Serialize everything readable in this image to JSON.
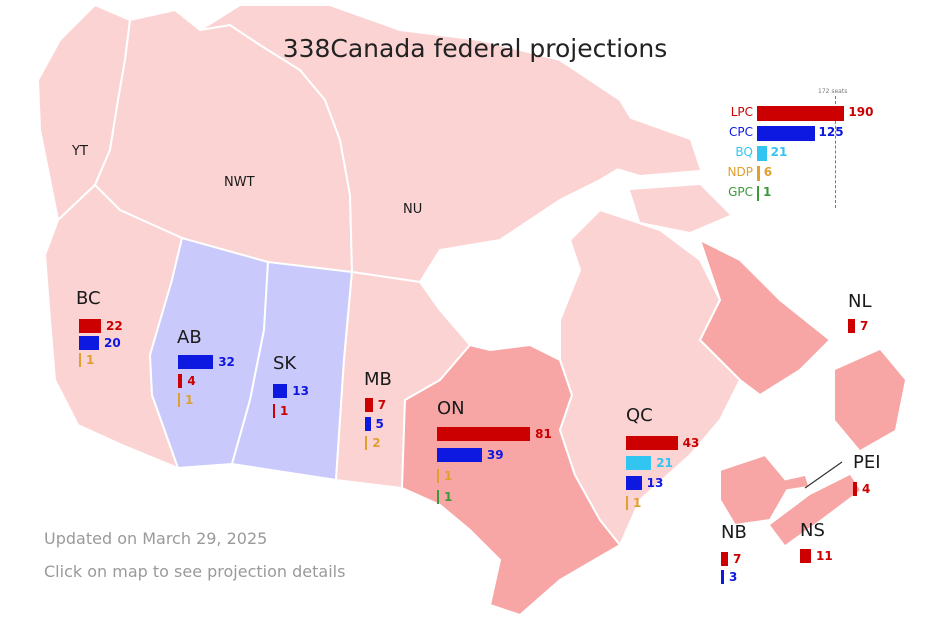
{
  "title": "338Canada federal projections",
  "colors": {
    "LPC": "#cc0000",
    "CPC": "#0d18e0",
    "BQ": "#33c5f2",
    "NDP": "#e0a030",
    "GPC": "#3a9a3a",
    "land_light": "#fbd3d3",
    "land_mid": "#f7a5a5",
    "land_cpc": "#c9c9fb",
    "water": "#ffffff"
  },
  "national": {
    "majority_label": "172 seats",
    "parties": [
      {
        "party": "LPC",
        "seats": 190
      },
      {
        "party": "CPC",
        "seats": 125
      },
      {
        "party": "BQ",
        "seats": 21
      },
      {
        "party": "NDP",
        "seats": 6
      },
      {
        "party": "GPC",
        "seats": 1
      }
    ]
  },
  "territories": [
    {
      "name": "YT"
    },
    {
      "name": "NWT"
    },
    {
      "name": "NU"
    }
  ],
  "provinces": [
    {
      "name": "BC",
      "seats": [
        {
          "party": "LPC",
          "value": 22
        },
        {
          "party": "CPC",
          "value": 20
        },
        {
          "party": "NDP",
          "value": 1
        }
      ]
    },
    {
      "name": "AB",
      "seats": [
        {
          "party": "CPC",
          "value": 32
        },
        {
          "party": "LPC",
          "value": 4
        },
        {
          "party": "NDP",
          "value": 1
        }
      ]
    },
    {
      "name": "SK",
      "seats": [
        {
          "party": "CPC",
          "value": 13
        },
        {
          "party": "LPC",
          "value": 1
        }
      ]
    },
    {
      "name": "MB",
      "seats": [
        {
          "party": "LPC",
          "value": 7
        },
        {
          "party": "CPC",
          "value": 5
        },
        {
          "party": "NDP",
          "value": 2
        }
      ]
    },
    {
      "name": "ON",
      "seats": [
        {
          "party": "LPC",
          "value": 81
        },
        {
          "party": "CPC",
          "value": 39
        },
        {
          "party": "NDP",
          "value": 1
        },
        {
          "party": "GPC",
          "value": 1
        }
      ]
    },
    {
      "name": "QC",
      "seats": [
        {
          "party": "LPC",
          "value": 43
        },
        {
          "party": "BQ",
          "value": 21
        },
        {
          "party": "CPC",
          "value": 13
        },
        {
          "party": "NDP",
          "value": 1
        }
      ]
    },
    {
      "name": "NL",
      "seats": [
        {
          "party": "LPC",
          "value": 7
        }
      ]
    },
    {
      "name": "PEI",
      "seats": [
        {
          "party": "LPC",
          "value": 4
        }
      ]
    },
    {
      "name": "NS",
      "seats": [
        {
          "party": "LPC",
          "value": 11
        }
      ]
    },
    {
      "name": "NB",
      "seats": [
        {
          "party": "LPC",
          "value": 7
        },
        {
          "party": "CPC",
          "value": 3
        }
      ]
    }
  ],
  "footer": {
    "updated": "Updated on March 29, 2025",
    "hint": "Click on map to see projection details"
  }
}
